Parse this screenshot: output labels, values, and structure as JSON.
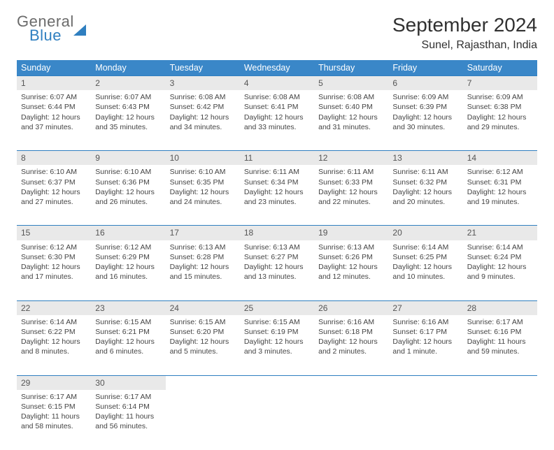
{
  "brand": {
    "line1": "General",
    "line2": "Blue"
  },
  "title": "September 2024",
  "location": "Sunel, Rajasthan, India",
  "colors": {
    "header_bg": "#3a87c8",
    "header_border": "#2f7fc0",
    "daynum_bg": "#e9e9e9",
    "page_bg": "#ffffff",
    "text": "#444444",
    "brand_gray": "#6b6b6b",
    "brand_blue": "#2f7fc0"
  },
  "weekdays": [
    "Sunday",
    "Monday",
    "Tuesday",
    "Wednesday",
    "Thursday",
    "Friday",
    "Saturday"
  ],
  "weeks": [
    [
      {
        "n": "1",
        "sunrise": "Sunrise: 6:07 AM",
        "sunset": "Sunset: 6:44 PM",
        "day1": "Daylight: 12 hours",
        "day2": "and 37 minutes."
      },
      {
        "n": "2",
        "sunrise": "Sunrise: 6:07 AM",
        "sunset": "Sunset: 6:43 PM",
        "day1": "Daylight: 12 hours",
        "day2": "and 35 minutes."
      },
      {
        "n": "3",
        "sunrise": "Sunrise: 6:08 AM",
        "sunset": "Sunset: 6:42 PM",
        "day1": "Daylight: 12 hours",
        "day2": "and 34 minutes."
      },
      {
        "n": "4",
        "sunrise": "Sunrise: 6:08 AM",
        "sunset": "Sunset: 6:41 PM",
        "day1": "Daylight: 12 hours",
        "day2": "and 33 minutes."
      },
      {
        "n": "5",
        "sunrise": "Sunrise: 6:08 AM",
        "sunset": "Sunset: 6:40 PM",
        "day1": "Daylight: 12 hours",
        "day2": "and 31 minutes."
      },
      {
        "n": "6",
        "sunrise": "Sunrise: 6:09 AM",
        "sunset": "Sunset: 6:39 PM",
        "day1": "Daylight: 12 hours",
        "day2": "and 30 minutes."
      },
      {
        "n": "7",
        "sunrise": "Sunrise: 6:09 AM",
        "sunset": "Sunset: 6:38 PM",
        "day1": "Daylight: 12 hours",
        "day2": "and 29 minutes."
      }
    ],
    [
      {
        "n": "8",
        "sunrise": "Sunrise: 6:10 AM",
        "sunset": "Sunset: 6:37 PM",
        "day1": "Daylight: 12 hours",
        "day2": "and 27 minutes."
      },
      {
        "n": "9",
        "sunrise": "Sunrise: 6:10 AM",
        "sunset": "Sunset: 6:36 PM",
        "day1": "Daylight: 12 hours",
        "day2": "and 26 minutes."
      },
      {
        "n": "10",
        "sunrise": "Sunrise: 6:10 AM",
        "sunset": "Sunset: 6:35 PM",
        "day1": "Daylight: 12 hours",
        "day2": "and 24 minutes."
      },
      {
        "n": "11",
        "sunrise": "Sunrise: 6:11 AM",
        "sunset": "Sunset: 6:34 PM",
        "day1": "Daylight: 12 hours",
        "day2": "and 23 minutes."
      },
      {
        "n": "12",
        "sunrise": "Sunrise: 6:11 AM",
        "sunset": "Sunset: 6:33 PM",
        "day1": "Daylight: 12 hours",
        "day2": "and 22 minutes."
      },
      {
        "n": "13",
        "sunrise": "Sunrise: 6:11 AM",
        "sunset": "Sunset: 6:32 PM",
        "day1": "Daylight: 12 hours",
        "day2": "and 20 minutes."
      },
      {
        "n": "14",
        "sunrise": "Sunrise: 6:12 AM",
        "sunset": "Sunset: 6:31 PM",
        "day1": "Daylight: 12 hours",
        "day2": "and 19 minutes."
      }
    ],
    [
      {
        "n": "15",
        "sunrise": "Sunrise: 6:12 AM",
        "sunset": "Sunset: 6:30 PM",
        "day1": "Daylight: 12 hours",
        "day2": "and 17 minutes."
      },
      {
        "n": "16",
        "sunrise": "Sunrise: 6:12 AM",
        "sunset": "Sunset: 6:29 PM",
        "day1": "Daylight: 12 hours",
        "day2": "and 16 minutes."
      },
      {
        "n": "17",
        "sunrise": "Sunrise: 6:13 AM",
        "sunset": "Sunset: 6:28 PM",
        "day1": "Daylight: 12 hours",
        "day2": "and 15 minutes."
      },
      {
        "n": "18",
        "sunrise": "Sunrise: 6:13 AM",
        "sunset": "Sunset: 6:27 PM",
        "day1": "Daylight: 12 hours",
        "day2": "and 13 minutes."
      },
      {
        "n": "19",
        "sunrise": "Sunrise: 6:13 AM",
        "sunset": "Sunset: 6:26 PM",
        "day1": "Daylight: 12 hours",
        "day2": "and 12 minutes."
      },
      {
        "n": "20",
        "sunrise": "Sunrise: 6:14 AM",
        "sunset": "Sunset: 6:25 PM",
        "day1": "Daylight: 12 hours",
        "day2": "and 10 minutes."
      },
      {
        "n": "21",
        "sunrise": "Sunrise: 6:14 AM",
        "sunset": "Sunset: 6:24 PM",
        "day1": "Daylight: 12 hours",
        "day2": "and 9 minutes."
      }
    ],
    [
      {
        "n": "22",
        "sunrise": "Sunrise: 6:14 AM",
        "sunset": "Sunset: 6:22 PM",
        "day1": "Daylight: 12 hours",
        "day2": "and 8 minutes."
      },
      {
        "n": "23",
        "sunrise": "Sunrise: 6:15 AM",
        "sunset": "Sunset: 6:21 PM",
        "day1": "Daylight: 12 hours",
        "day2": "and 6 minutes."
      },
      {
        "n": "24",
        "sunrise": "Sunrise: 6:15 AM",
        "sunset": "Sunset: 6:20 PM",
        "day1": "Daylight: 12 hours",
        "day2": "and 5 minutes."
      },
      {
        "n": "25",
        "sunrise": "Sunrise: 6:15 AM",
        "sunset": "Sunset: 6:19 PM",
        "day1": "Daylight: 12 hours",
        "day2": "and 3 minutes."
      },
      {
        "n": "26",
        "sunrise": "Sunrise: 6:16 AM",
        "sunset": "Sunset: 6:18 PM",
        "day1": "Daylight: 12 hours",
        "day2": "and 2 minutes."
      },
      {
        "n": "27",
        "sunrise": "Sunrise: 6:16 AM",
        "sunset": "Sunset: 6:17 PM",
        "day1": "Daylight: 12 hours",
        "day2": "and 1 minute."
      },
      {
        "n": "28",
        "sunrise": "Sunrise: 6:17 AM",
        "sunset": "Sunset: 6:16 PM",
        "day1": "Daylight: 11 hours",
        "day2": "and 59 minutes."
      }
    ],
    [
      {
        "n": "29",
        "sunrise": "Sunrise: 6:17 AM",
        "sunset": "Sunset: 6:15 PM",
        "day1": "Daylight: 11 hours",
        "day2": "and 58 minutes."
      },
      {
        "n": "30",
        "sunrise": "Sunrise: 6:17 AM",
        "sunset": "Sunset: 6:14 PM",
        "day1": "Daylight: 11 hours",
        "day2": "and 56 minutes."
      },
      null,
      null,
      null,
      null,
      null
    ]
  ]
}
